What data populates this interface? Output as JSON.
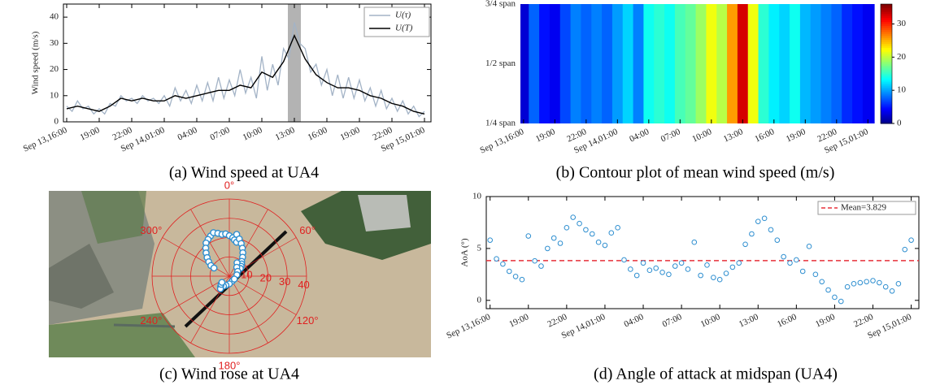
{
  "chart_data": [
    {
      "type": "line",
      "caption": "(a) Wind speed at UA4",
      "ylabel": "Wind speed (m/s)",
      "xlim": [
        -0.3,
        33.6
      ],
      "ylim": [
        0,
        45
      ],
      "xticks": [
        {
          "value": 0,
          "label": "Sep 13,16:00"
        },
        {
          "value": 3,
          "label": "19:00"
        },
        {
          "value": 6,
          "label": "22:00"
        },
        {
          "value": 9,
          "label": "Sep 14,01:00"
        },
        {
          "value": 12,
          "label": "04:00"
        },
        {
          "value": 15,
          "label": "07:00"
        },
        {
          "value": 18,
          "label": "10:00"
        },
        {
          "value": 21,
          "label": "13:00"
        },
        {
          "value": 24,
          "label": "16:00"
        },
        {
          "value": 27,
          "label": "19:00"
        },
        {
          "value": 30,
          "label": "22:00"
        },
        {
          "value": 33,
          "label": "Sep 15,01:00"
        }
      ],
      "yticks": [
        0,
        10,
        20,
        30,
        40
      ],
      "highlight": [
        20.4,
        21.6
      ],
      "legend": "upper right",
      "series": [
        {
          "name": "U(τ)",
          "color": "#a3b3c6",
          "x": [
            0,
            0.5,
            1,
            1.5,
            2,
            2.5,
            3,
            3.5,
            4,
            4.5,
            5,
            5.5,
            6,
            6.5,
            7,
            7.5,
            8,
            8.5,
            9,
            9.5,
            10,
            10.5,
            11,
            11.5,
            12,
            12.5,
            13,
            13.5,
            14,
            14.5,
            15,
            15.5,
            16,
            16.5,
            17,
            17.5,
            18,
            18.5,
            19,
            19.5,
            20,
            20.5,
            21,
            21.5,
            22,
            22.5,
            23,
            23.5,
            24,
            24.5,
            25,
            25.5,
            26,
            26.5,
            27,
            27.5,
            28,
            28.5,
            29,
            29.5,
            30,
            30.5,
            31,
            31.5,
            32,
            32.5,
            33
          ],
          "values": [
            6,
            4,
            8,
            5,
            6,
            3,
            5,
            3,
            7,
            6,
            10,
            8,
            9,
            7,
            10,
            8,
            9,
            7,
            10,
            6,
            13,
            8,
            12,
            7,
            14,
            8,
            15,
            8,
            17,
            9,
            16,
            10,
            20,
            11,
            17,
            9,
            25,
            12,
            22,
            14,
            28,
            24,
            38,
            30,
            28,
            19,
            22,
            14,
            20,
            10,
            18,
            9,
            17,
            9,
            16,
            8,
            13,
            6,
            12,
            5,
            9,
            4,
            8,
            3,
            6,
            2,
            4
          ]
        },
        {
          "name": "U(T)",
          "color": "#000000",
          "x": [
            0,
            1,
            2,
            3,
            4,
            5,
            6,
            7,
            8,
            9,
            10,
            11,
            12,
            13,
            14,
            15,
            16,
            17,
            18,
            19,
            20,
            21,
            22,
            23,
            24,
            25,
            26,
            27,
            28,
            29,
            30,
            31,
            32,
            33
          ],
          "values": [
            5,
            6,
            5,
            4,
            6,
            9,
            8,
            9,
            8,
            8,
            10,
            9,
            10,
            11,
            12,
            12,
            14,
            13,
            19,
            17,
            23,
            33,
            24,
            18,
            15,
            13,
            13,
            12,
            10,
            9,
            7,
            6,
            4,
            3
          ]
        }
      ]
    },
    {
      "type": "heatmap",
      "caption": "(b) Contour plot of mean wind speed (m/s)",
      "xlim": [
        -0.3,
        33.6
      ],
      "xticks": [
        {
          "value": 0,
          "label": "Sep 13,16:00"
        },
        {
          "value": 3,
          "label": "19:00"
        },
        {
          "value": 6,
          "label": "22:00"
        },
        {
          "value": 9,
          "label": "Sep 14,01:00"
        },
        {
          "value": 12,
          "label": "04:00"
        },
        {
          "value": 15,
          "label": "07:00"
        },
        {
          "value": 18,
          "label": "10:00"
        },
        {
          "value": 21,
          "label": "13:00"
        },
        {
          "value": 24,
          "label": "16:00"
        },
        {
          "value": 27,
          "label": "19:00"
        },
        {
          "value": 30,
          "label": "22:00"
        },
        {
          "value": 33,
          "label": "Sep 15,01:00"
        }
      ],
      "ycategories": [
        "1/4 span",
        "1/2 span",
        "3/4 span"
      ],
      "x": [
        0,
        1,
        2,
        3,
        4,
        5,
        6,
        7,
        8,
        9,
        10,
        11,
        12,
        13,
        14,
        15,
        16,
        17,
        18,
        19,
        20,
        21,
        22,
        23,
        24,
        25,
        26,
        27,
        28,
        29,
        30,
        31,
        32,
        33
      ],
      "values": [
        3,
        8,
        5,
        4,
        7,
        9,
        8,
        9,
        8,
        10,
        12,
        9,
        14,
        15,
        14,
        16,
        17,
        19,
        22,
        20,
        26,
        33,
        22,
        15,
        13,
        12,
        14,
        11,
        10,
        9,
        8,
        6,
        5,
        4
      ],
      "colormap": "jet",
      "clim": [
        0,
        36
      ],
      "cticks": [
        0,
        10,
        20,
        30
      ]
    },
    {
      "type": "polar",
      "caption": "(c) Wind rose at UA4",
      "color": "#2f8fd0",
      "rlim": [
        0,
        40
      ],
      "rticks": [
        10,
        20,
        30,
        40
      ],
      "thetaticks": [
        {
          "value": 0,
          "label": "0°"
        },
        {
          "value": 60,
          "label": "60°"
        },
        {
          "value": 120,
          "label": "120°"
        },
        {
          "value": 180,
          "label": "180°"
        },
        {
          "value": 240,
          "label": "240°"
        },
        {
          "value": 300,
          "label": "300°"
        }
      ],
      "theta": [
        335,
        340,
        345,
        350,
        355,
        0,
        5,
        8,
        12,
        330,
        325,
        320,
        315,
        310,
        305,
        300,
        298,
        10,
        15,
        20,
        25,
        30,
        35,
        40,
        45,
        50,
        55,
        30,
        40,
        60,
        80,
        150,
        180,
        200,
        210,
        220,
        215,
        225,
        230,
        120
      ],
      "r": [
        23,
        24,
        23,
        22,
        22,
        21,
        20,
        19,
        18,
        22,
        21,
        19,
        17,
        15,
        13,
        11,
        9,
        22,
        20,
        18,
        16,
        14,
        12,
        10,
        9,
        8,
        7,
        8,
        6,
        5,
        4,
        3,
        4,
        5,
        6,
        7,
        8,
        6,
        5,
        3
      ]
    },
    {
      "type": "scatter",
      "caption": "(d) Angle of attack at midspan (UA4)",
      "ylabel": "AoA (°)",
      "color": "#2f8fd0",
      "xlim": [
        -0.3,
        33.6
      ],
      "ylim": [
        -0.8,
        10
      ],
      "xticks": [
        {
          "value": 0,
          "label": "Sep 13,16:00"
        },
        {
          "value": 3,
          "label": "19:00"
        },
        {
          "value": 6,
          "label": "22:00"
        },
        {
          "value": 9,
          "label": "Sep 14,01:00"
        },
        {
          "value": 12,
          "label": "04:00"
        },
        {
          "value": 15,
          "label": "07:00"
        },
        {
          "value": 18,
          "label": "10:00"
        },
        {
          "value": 21,
          "label": "13:00"
        },
        {
          "value": 24,
          "label": "16:00"
        },
        {
          "value": 27,
          "label": "19:00"
        },
        {
          "value": 30,
          "label": "22:00"
        },
        {
          "value": 33,
          "label": "Sep 15,01:00"
        }
      ],
      "yticks": [
        0,
        5,
        10
      ],
      "x": [
        0,
        0.5,
        1,
        1.5,
        2,
        2.5,
        3,
        3.5,
        4,
        4.5,
        5,
        5.5,
        6,
        6.5,
        7,
        7.5,
        8,
        8.5,
        9,
        9.5,
        10,
        10.5,
        11,
        11.5,
        12,
        12.5,
        13,
        13.5,
        14,
        14.5,
        15,
        15.5,
        16,
        16.5,
        17,
        17.5,
        18,
        18.5,
        19,
        19.5,
        20,
        20.5,
        21,
        21.5,
        22,
        22.5,
        23,
        23.5,
        24,
        24.5,
        25,
        25.5,
        26,
        26.5,
        27,
        27.5,
        28,
        28.5,
        29,
        29.5,
        30,
        30.5,
        31,
        31.5,
        32,
        32.5,
        33
      ],
      "values": [
        5.8,
        4.0,
        3.5,
        2.8,
        2.3,
        2.0,
        6.2,
        3.8,
        3.3,
        5.0,
        6.0,
        5.5,
        7.0,
        8.0,
        7.4,
        6.8,
        6.4,
        5.6,
        5.3,
        6.5,
        7.0,
        3.9,
        3.0,
        2.4,
        3.6,
        2.9,
        3.1,
        2.7,
        2.5,
        3.3,
        3.6,
        3.0,
        5.6,
        2.4,
        3.4,
        2.2,
        2.0,
        2.6,
        3.2,
        3.6,
        5.4,
        6.4,
        7.6,
        7.9,
        6.8,
        5.8,
        4.2,
        3.6,
        3.9,
        2.8,
        5.2,
        2.5,
        1.8,
        1.0,
        0.3,
        -0.1,
        1.3,
        1.6,
        1.7,
        1.8,
        1.9,
        1.7,
        1.3,
        0.9,
        1.6,
        4.9,
        5.8
      ],
      "mean": {
        "value": 3.829,
        "label": "Mean=3.829",
        "color": "#e8303a"
      }
    }
  ]
}
